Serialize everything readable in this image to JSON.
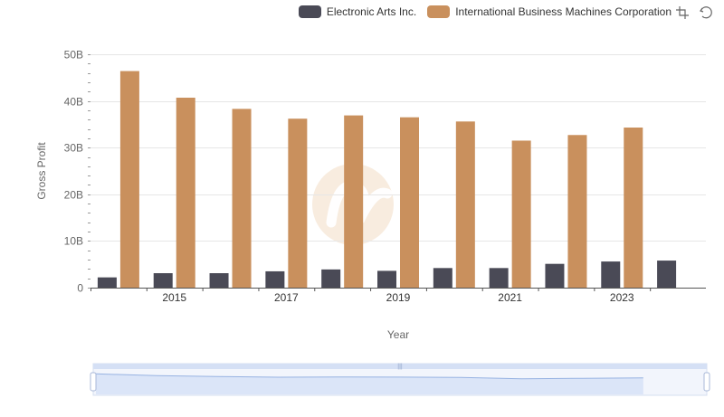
{
  "toolbar": {
    "zoom_icon": "zoom-icon",
    "restore_icon": "restore-icon"
  },
  "chart_data": {
    "type": "bar",
    "xlabel": "Year",
    "ylabel": "Gross Profit",
    "ylim": [
      0,
      50000000000
    ],
    "yticks": [
      0,
      10000000000,
      20000000000,
      30000000000,
      40000000000,
      50000000000
    ],
    "ytick_labels": [
      "0",
      "10B",
      "20B",
      "30B",
      "40B",
      "50B"
    ],
    "categories": [
      "2014",
      "2015",
      "2016",
      "2017",
      "2018",
      "2019",
      "2020",
      "2021",
      "2022",
      "2023",
      "2024"
    ],
    "xtick_labels": [
      "2015",
      "2017",
      "2019",
      "2021",
      "2023"
    ],
    "grid": true,
    "legend_position": "top-right",
    "series": [
      {
        "name": "Electronic Arts Inc.",
        "color": "#4a4a56",
        "values": [
          2200000000,
          3100000000,
          3100000000,
          3500000000,
          3900000000,
          3600000000,
          4200000000,
          4200000000,
          5100000000,
          5600000000,
          5800000000
        ]
      },
      {
        "name": "International Business Machines Corporation",
        "color": "#c9905d",
        "values": [
          46400000000,
          40700000000,
          38300000000,
          36200000000,
          36900000000,
          36500000000,
          35600000000,
          31500000000,
          32700000000,
          34300000000,
          null
        ]
      }
    ],
    "watermark_color": "#f6e7d7",
    "slider_color": "#dbe5f8",
    "slider_line_color": "#98b3e2"
  }
}
